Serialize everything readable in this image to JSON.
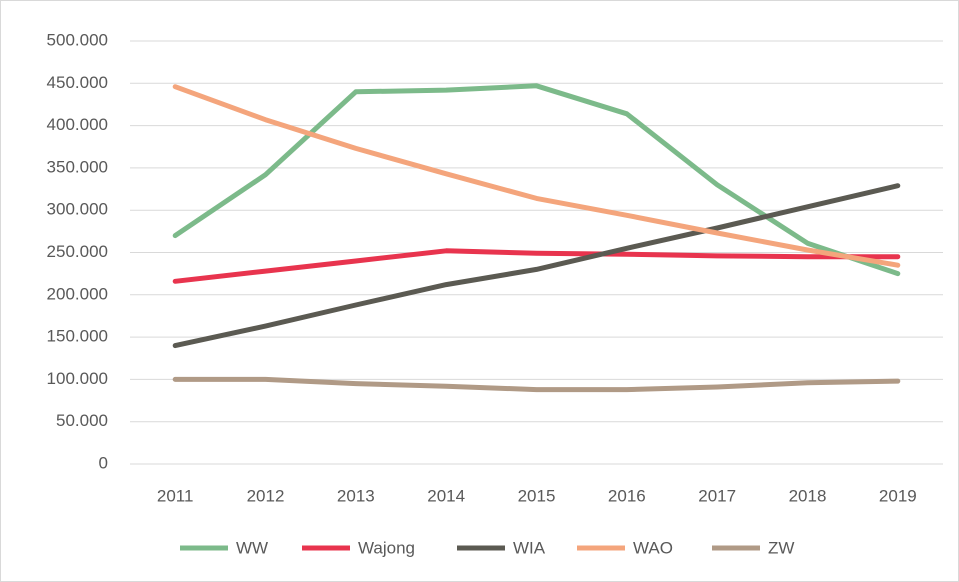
{
  "chart_data": {
    "type": "line",
    "categories": [
      "2011",
      "2012",
      "2013",
      "2014",
      "2015",
      "2016",
      "2017",
      "2018",
      "2019"
    ],
    "series": [
      {
        "name": "WW",
        "color": "#7cba8a",
        "values": [
          270000,
          342000,
          440000,
          442000,
          447000,
          414000,
          330000,
          261000,
          225000
        ]
      },
      {
        "name": "Wajong",
        "color": "#e8344e",
        "values": [
          216000,
          228000,
          240000,
          252000,
          249000,
          248000,
          246000,
          245000,
          245000
        ]
      },
      {
        "name": "WIA",
        "color": "#5b5a52",
        "values": [
          140000,
          163000,
          188000,
          212000,
          230000,
          255000,
          279000,
          304000,
          329000
        ]
      },
      {
        "name": "WAO",
        "color": "#f4a57c",
        "values": [
          446000,
          407000,
          373000,
          343000,
          314000,
          294000,
          273000,
          253000,
          235000
        ]
      },
      {
        "name": "ZW",
        "color": "#b09a86",
        "values": [
          100000,
          100000,
          95000,
          92000,
          88000,
          88000,
          91000,
          96000,
          98000
        ]
      }
    ],
    "ylim": [
      0,
      500000
    ],
    "yticks": [
      0,
      {
        "value": 50000,
        "label": "50.000"
      },
      {
        "value": 100000,
        "label": "100.000"
      },
      {
        "value": 150000,
        "label": "150.000"
      },
      {
        "value": 200000,
        "label": "200.000"
      },
      {
        "value": 250000,
        "label": "250.000"
      },
      {
        "value": 300000,
        "label": "300.000"
      },
      {
        "value": 350000,
        "label": "350.000"
      },
      {
        "value": 400000,
        "label": "400.000"
      },
      {
        "value": 450000,
        "label": "450.000"
      },
      {
        "value": 500000,
        "label": "500.000"
      }
    ],
    "grid": true,
    "legend": "bottom"
  }
}
